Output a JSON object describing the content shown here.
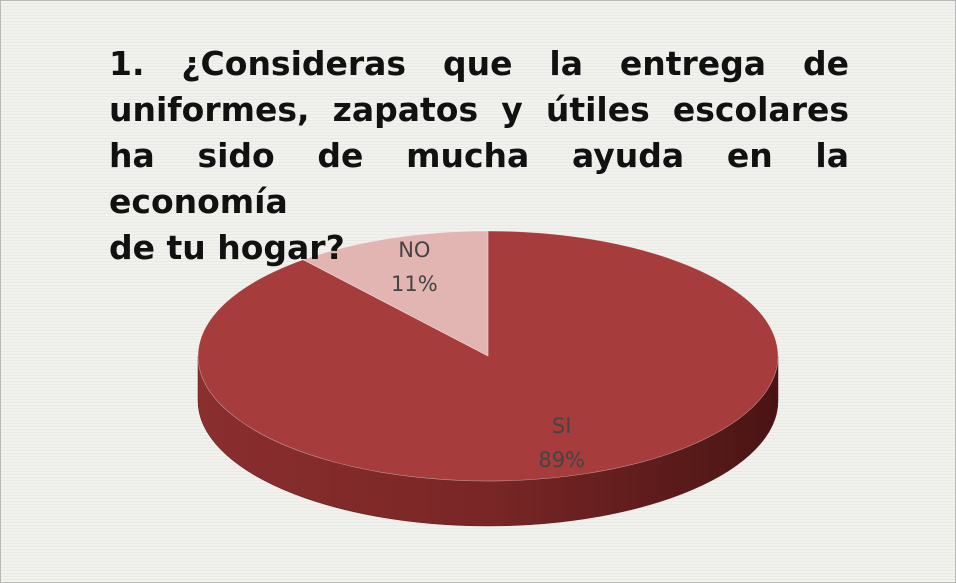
{
  "chart_data": {
    "type": "pie",
    "title": "1. ¿Consideras que la entrega de uniformes, zapatos y útiles escolares ha sido de mucha ayuda en la economía\n de tu hogar?",
    "categories": [
      "SI",
      "NO"
    ],
    "values": [
      89,
      11
    ],
    "value_labels": [
      "89%",
      "11%"
    ],
    "colors": [
      "#a63c3c",
      "#e2b4b2"
    ]
  }
}
